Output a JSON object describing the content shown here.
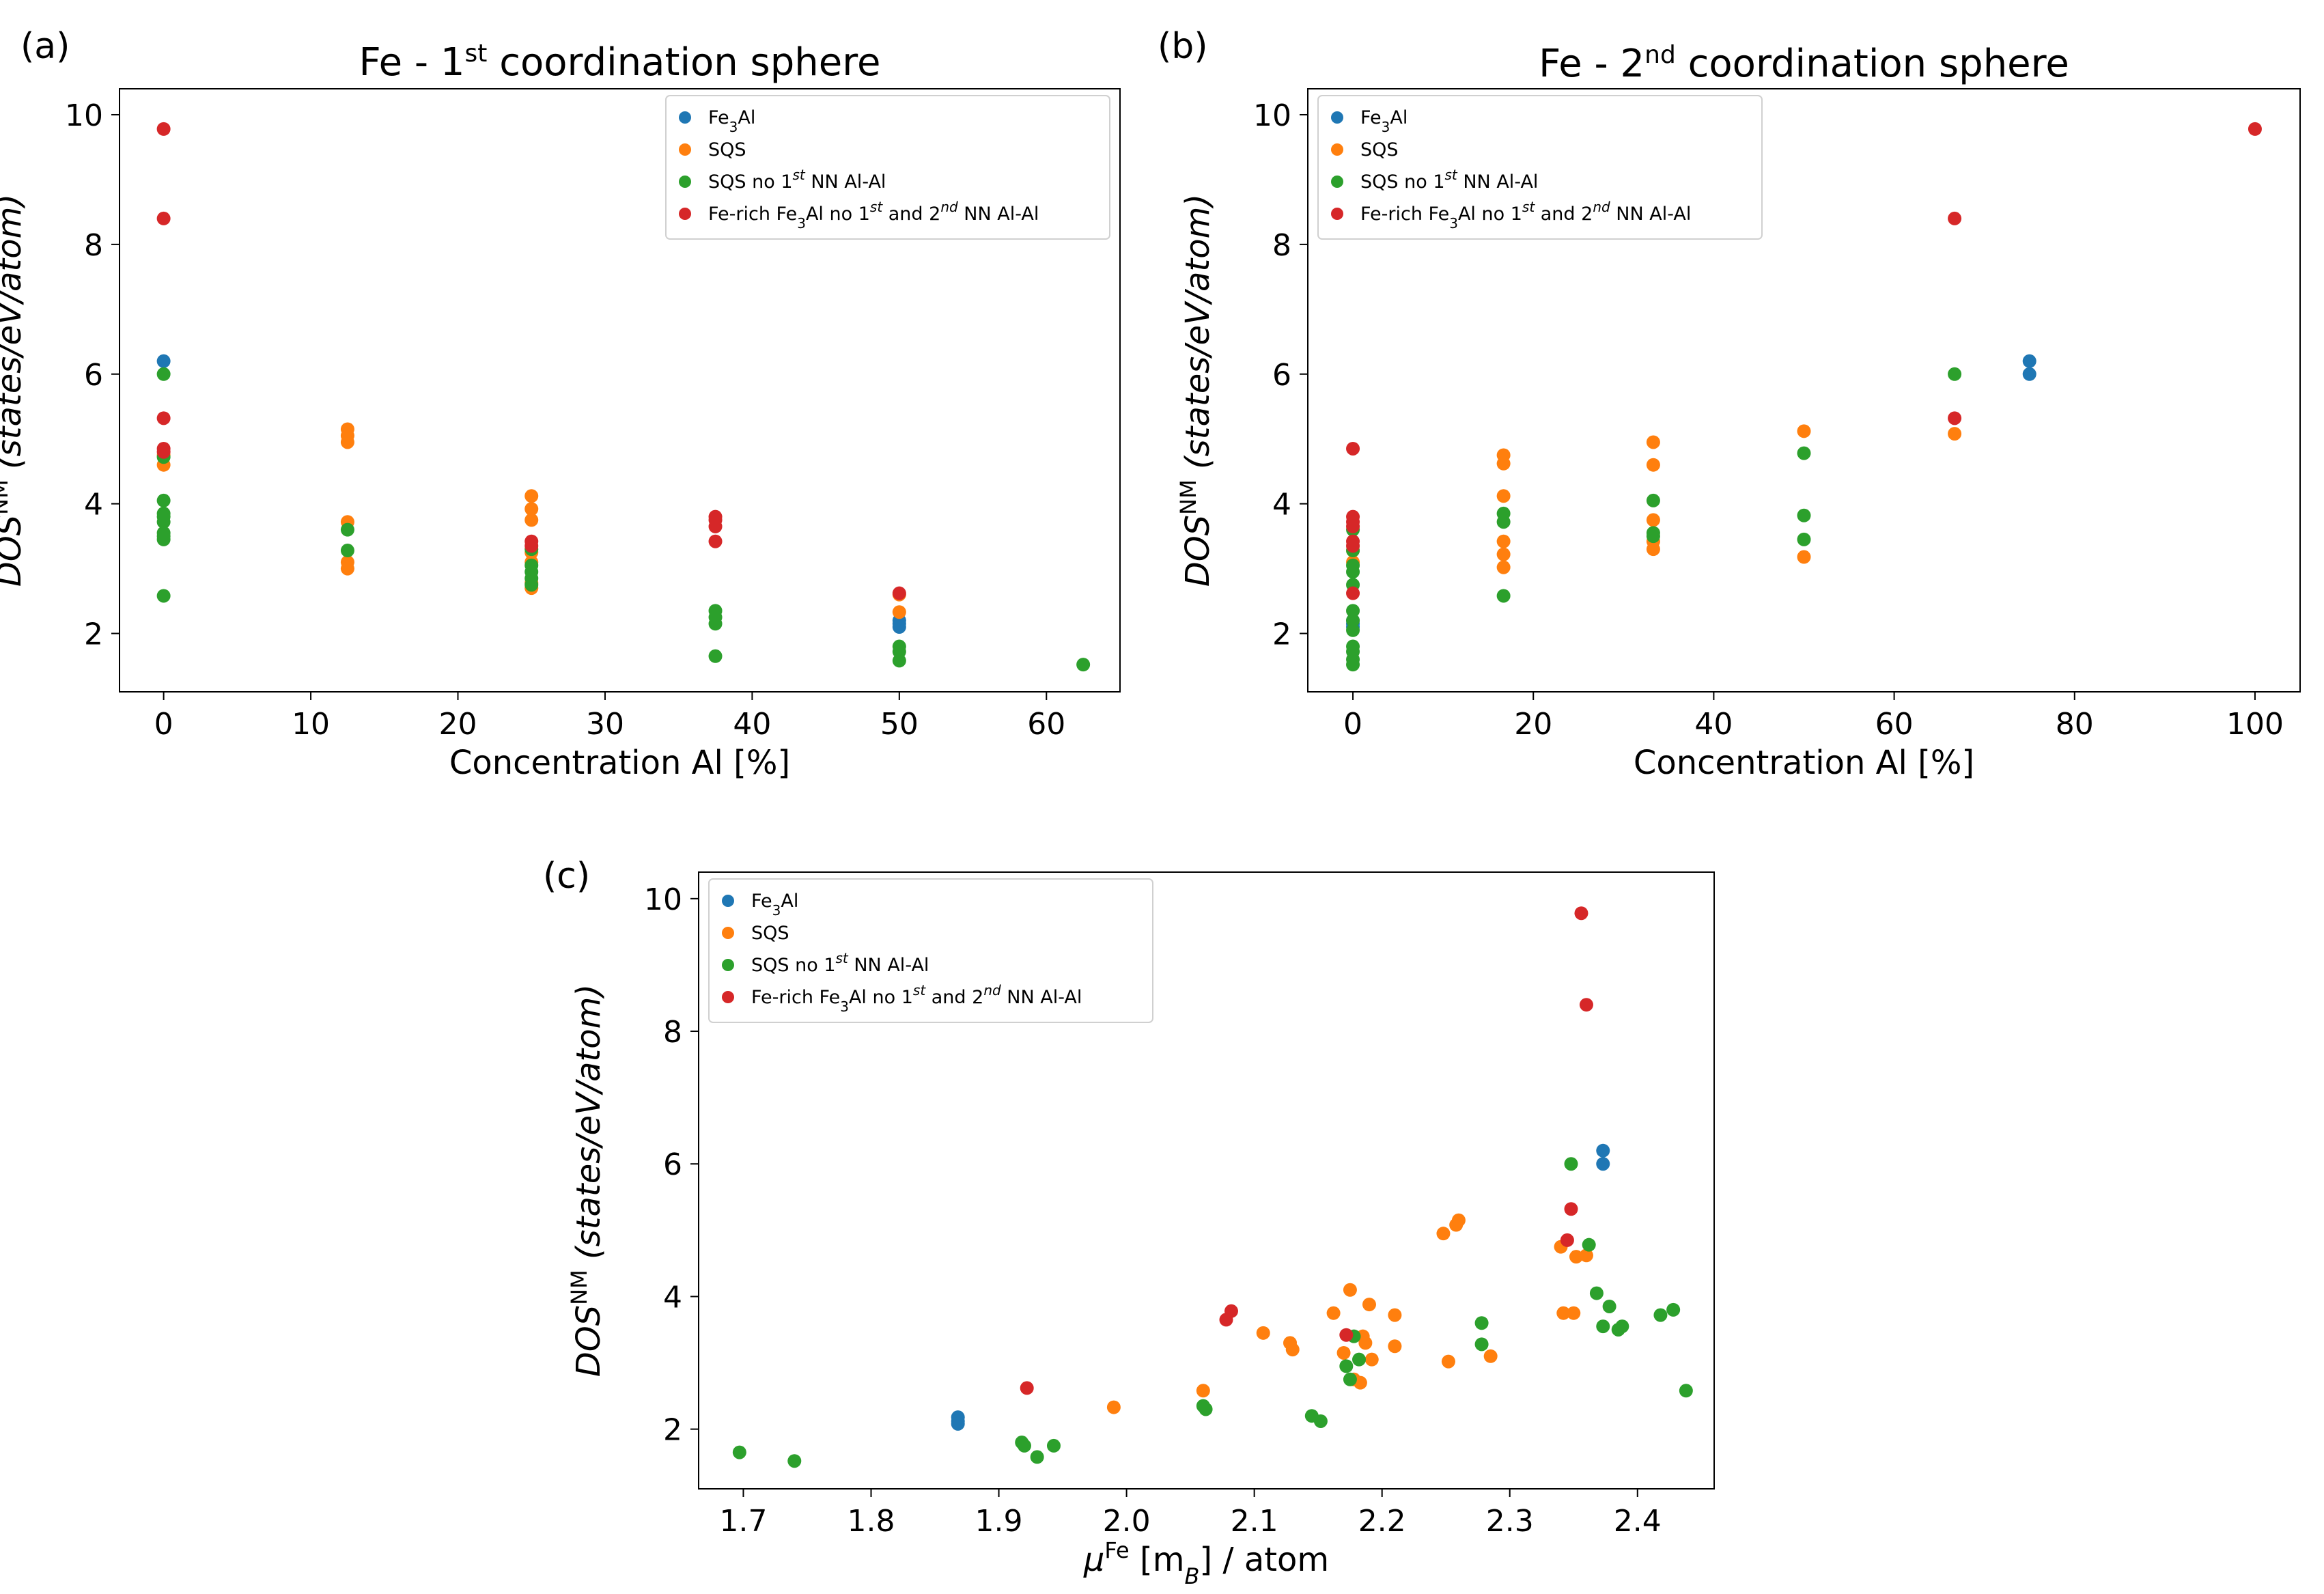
{
  "chart_data": [
    {
      "type": "scatter",
      "panel": "(a)",
      "title": "Fe - 1st coordination sphere",
      "title_main": "Fe - 1",
      "title_sup": "st",
      "title_rest": " coordination sphere",
      "xlabel": "Concentration Al [%]",
      "ylabel_base": "DOS",
      "ylabel_sup": "NM",
      "ylabel_rest": " (states/eV/atom)",
      "xlim": [
        -3,
        65
      ],
      "ylim": [
        1.1,
        10.4
      ],
      "xticks": [
        0,
        10,
        20,
        30,
        40,
        50,
        60
      ],
      "yticks": [
        2,
        4,
        6,
        8,
        10
      ],
      "legend_position": "top-right",
      "series": [
        {
          "name": "Fe3Al",
          "color": "#1f77b4",
          "points": [
            [
              0,
              6.2
            ],
            [
              50,
              2.2
            ],
            [
              50,
              2.15
            ],
            [
              50,
              2.1
            ]
          ]
        },
        {
          "name": "SQS",
          "color": "#ff7f0e",
          "points": [
            [
              0,
              4.75
            ],
            [
              0,
              4.6
            ],
            [
              12.5,
              5.15
            ],
            [
              12.5,
              5.05
            ],
            [
              12.5,
              4.95
            ],
            [
              12.5,
              3.72
            ],
            [
              12.5,
              3.1
            ],
            [
              12.5,
              3.0
            ],
            [
              25,
              4.12
            ],
            [
              25,
              3.92
            ],
            [
              25,
              3.75
            ],
            [
              25,
              3.25
            ],
            [
              25,
              3.1
            ],
            [
              25,
              2.78
            ],
            [
              25,
              2.7
            ],
            [
              50,
              2.6
            ],
            [
              50,
              2.33
            ]
          ]
        },
        {
          "name": "SQS no 1st NN Al-Al",
          "color": "#2ca02c",
          "points": [
            [
              0,
              6.0
            ],
            [
              0,
              4.72
            ],
            [
              0,
              4.05
            ],
            [
              0,
              3.85
            ],
            [
              0,
              3.8
            ],
            [
              0,
              3.72
            ],
            [
              0,
              3.55
            ],
            [
              0,
              3.5
            ],
            [
              0,
              3.45
            ],
            [
              0,
              2.58
            ],
            [
              12.5,
              3.6
            ],
            [
              12.5,
              3.28
            ],
            [
              25,
              3.3
            ],
            [
              25,
              3.05
            ],
            [
              25,
              2.95
            ],
            [
              25,
              2.85
            ],
            [
              25,
              2.75
            ],
            [
              37.5,
              2.35
            ],
            [
              37.5,
              2.25
            ],
            [
              37.5,
              2.15
            ],
            [
              37.5,
              1.65
            ],
            [
              50,
              1.8
            ],
            [
              50,
              1.72
            ],
            [
              50,
              1.58
            ],
            [
              62.5,
              1.52
            ]
          ]
        },
        {
          "name": "Fe-rich Fe3Al no 1st and 2nd NN Al-Al",
          "color": "#d62728",
          "points": [
            [
              0,
              9.78
            ],
            [
              0,
              8.4
            ],
            [
              0,
              5.32
            ],
            [
              0,
              4.85
            ],
            [
              0,
              4.8
            ],
            [
              25,
              3.42
            ],
            [
              25,
              3.35
            ],
            [
              37.5,
              3.8
            ],
            [
              37.5,
              3.75
            ],
            [
              37.5,
              3.65
            ],
            [
              37.5,
              3.42
            ],
            [
              50,
              2.62
            ]
          ]
        }
      ]
    },
    {
      "type": "scatter",
      "panel": "(b)",
      "title": "Fe - 2nd coordination sphere",
      "title_main": "Fe - 2",
      "title_sup": "nd",
      "title_rest": " coordination sphere",
      "xlabel": "Concentration Al [%]",
      "ylabel_base": "DOS",
      "ylabel_sup": "NM",
      "ylabel_rest": " (states/eV/atom)",
      "xlim": [
        -5,
        105
      ],
      "ylim": [
        1.1,
        10.4
      ],
      "xticks": [
        0,
        20,
        40,
        60,
        80,
        100
      ],
      "yticks": [
        2,
        4,
        6,
        8,
        10
      ],
      "legend_position": "top-left",
      "series": [
        {
          "name": "Fe3Al",
          "color": "#1f77b4",
          "points": [
            [
              0,
              2.2
            ],
            [
              0,
              2.15
            ],
            [
              0,
              2.1
            ],
            [
              75,
              6.2
            ],
            [
              75,
              6.0
            ]
          ]
        },
        {
          "name": "SQS",
          "color": "#ff7f0e",
          "points": [
            [
              0,
              3.28
            ],
            [
              0,
              3.1
            ],
            [
              16.7,
              4.75
            ],
            [
              16.7,
              4.62
            ],
            [
              16.7,
              4.12
            ],
            [
              16.7,
              3.42
            ],
            [
              16.7,
              3.22
            ],
            [
              16.7,
              3.02
            ],
            [
              33.3,
              4.95
            ],
            [
              33.3,
              4.6
            ],
            [
              33.3,
              3.75
            ],
            [
              33.3,
              3.42
            ],
            [
              33.3,
              3.3
            ],
            [
              50,
              5.12
            ],
            [
              50,
              3.18
            ],
            [
              66.7,
              5.08
            ]
          ]
        },
        {
          "name": "SQS no 1st NN Al-Al",
          "color": "#2ca02c",
          "points": [
            [
              0,
              3.6
            ],
            [
              0,
              3.28
            ],
            [
              0,
              3.05
            ],
            [
              0,
              2.95
            ],
            [
              0,
              2.75
            ],
            [
              0,
              2.35
            ],
            [
              0,
              2.2
            ],
            [
              0,
              2.05
            ],
            [
              0,
              1.8
            ],
            [
              0,
              1.72
            ],
            [
              0,
              1.6
            ],
            [
              0,
              1.52
            ],
            [
              16.7,
              3.85
            ],
            [
              16.7,
              3.72
            ],
            [
              16.7,
              2.58
            ],
            [
              33.3,
              4.05
            ],
            [
              33.3,
              3.55
            ],
            [
              33.3,
              3.5
            ],
            [
              50,
              4.78
            ],
            [
              50,
              3.82
            ],
            [
              50,
              3.45
            ],
            [
              66.7,
              6.0
            ]
          ]
        },
        {
          "name": "Fe-rich Fe3Al no 1st and 2nd NN Al-Al",
          "color": "#d62728",
          "points": [
            [
              0,
              4.85
            ],
            [
              0,
              3.8
            ],
            [
              0,
              3.72
            ],
            [
              0,
              3.65
            ],
            [
              0,
              3.42
            ],
            [
              0,
              3.35
            ],
            [
              0,
              2.62
            ],
            [
              66.7,
              8.4
            ],
            [
              66.7,
              5.32
            ],
            [
              100,
              9.78
            ]
          ]
        }
      ]
    },
    {
      "type": "scatter",
      "panel": "(c)",
      "title": "",
      "xlabel": "μFe [mB] / atom",
      "xlabel_mu": "μ",
      "xlabel_sup": "Fe",
      "xlabel_mid": " [m",
      "xlabel_sub": "B",
      "xlabel_rest": "] / atom",
      "ylabel_base": "DOS",
      "ylabel_sup": "NM",
      "ylabel_rest": " (states/eV/atom)",
      "xlim": [
        1.665,
        2.46
      ],
      "ylim": [
        1.1,
        10.4
      ],
      "xticks": [
        1.7,
        1.8,
        1.9,
        2.0,
        2.1,
        2.2,
        2.3,
        2.4
      ],
      "xtick_labels": [
        "1.7",
        "1.8",
        "1.9",
        "2.0",
        "2.1",
        "2.2",
        "2.3",
        "2.4"
      ],
      "yticks": [
        2,
        4,
        6,
        8,
        10
      ],
      "legend_position": "top-left",
      "series": [
        {
          "name": "Fe3Al",
          "color": "#1f77b4",
          "points": [
            [
              1.868,
              2.18
            ],
            [
              1.868,
              2.12
            ],
            [
              1.868,
              2.08
            ],
            [
              2.373,
              6.2
            ],
            [
              2.373,
              6.0
            ]
          ]
        },
        {
          "name": "SQS",
          "color": "#ff7f0e",
          "points": [
            [
              1.99,
              2.33
            ],
            [
              2.06,
              2.58
            ],
            [
              2.107,
              3.45
            ],
            [
              2.128,
              3.3
            ],
            [
              2.13,
              3.2
            ],
            [
              2.162,
              3.75
            ],
            [
              2.17,
              3.15
            ],
            [
              2.175,
              4.1
            ],
            [
              2.178,
              2.75
            ],
            [
              2.183,
              2.7
            ],
            [
              2.185,
              3.4
            ],
            [
              2.187,
              3.3
            ],
            [
              2.19,
              3.88
            ],
            [
              2.192,
              3.05
            ],
            [
              2.21,
              3.72
            ],
            [
              2.21,
              3.25
            ],
            [
              2.248,
              4.95
            ],
            [
              2.252,
              3.02
            ],
            [
              2.258,
              5.08
            ],
            [
              2.26,
              5.15
            ],
            [
              2.285,
              3.1
            ],
            [
              2.34,
              4.75
            ],
            [
              2.342,
              3.75
            ],
            [
              2.35,
              3.75
            ],
            [
              2.352,
              4.6
            ],
            [
              2.36,
              4.62
            ]
          ]
        },
        {
          "name": "SQS no 1st NN Al-Al",
          "color": "#2ca02c",
          "points": [
            [
              1.697,
              1.65
            ],
            [
              1.74,
              1.52
            ],
            [
              1.918,
              1.8
            ],
            [
              1.92,
              1.75
            ],
            [
              1.93,
              1.58
            ],
            [
              1.943,
              1.75
            ],
            [
              2.06,
              2.35
            ],
            [
              2.062,
              2.3
            ],
            [
              2.145,
              2.2
            ],
            [
              2.152,
              2.12
            ],
            [
              2.172,
              2.95
            ],
            [
              2.175,
              2.75
            ],
            [
              2.178,
              3.4
            ],
            [
              2.182,
              3.05
            ],
            [
              2.278,
              3.6
            ],
            [
              2.278,
              3.28
            ],
            [
              2.348,
              6.0
            ],
            [
              2.362,
              4.78
            ],
            [
              2.368,
              4.05
            ],
            [
              2.373,
              3.55
            ],
            [
              2.378,
              3.85
            ],
            [
              2.385,
              3.5
            ],
            [
              2.388,
              3.55
            ],
            [
              2.418,
              3.72
            ],
            [
              2.428,
              3.8
            ],
            [
              2.438,
              2.58
            ]
          ]
        },
        {
          "name": "Fe-rich Fe3Al no 1st and 2nd NN Al-Al",
          "color": "#d62728",
          "points": [
            [
              1.922,
              2.62
            ],
            [
              2.078,
              3.65
            ],
            [
              2.082,
              3.78
            ],
            [
              2.172,
              3.42
            ],
            [
              2.345,
              4.85
            ],
            [
              2.348,
              5.32
            ],
            [
              2.356,
              9.78
            ],
            [
              2.36,
              8.4
            ]
          ]
        }
      ]
    }
  ],
  "legend_labels": [
    {
      "base": "Fe",
      "sub": "3",
      "rest": "Al"
    },
    {
      "base": "SQS"
    },
    {
      "base": "SQS no 1",
      "sup": "st",
      "rest": " NN Al-Al"
    },
    {
      "base": "Fe-rich Fe",
      "sub": "3",
      "rest": "Al no 1",
      "sup": "st",
      "rest2": " and 2",
      "sup2": "nd",
      "rest3": " NN Al-Al"
    }
  ]
}
